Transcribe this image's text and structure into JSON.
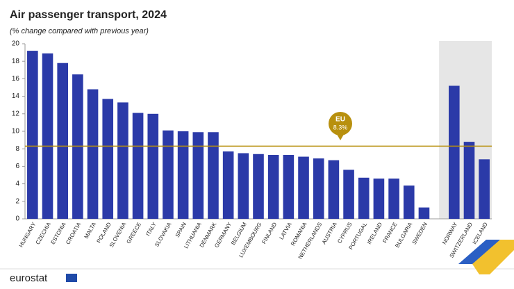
{
  "chart_data": {
    "type": "bar",
    "title": "Air passenger transport, 2024",
    "subtitle": "(% change compared with previous year)",
    "categories": [
      "HUNGARY",
      "CZECHIA",
      "ESTONIA",
      "CROATIA",
      "MALTA",
      "POLAND",
      "SLOVENIA",
      "GREECE",
      "ITALY",
      "SLOVAKIA",
      "SPAIN",
      "LITHUANIA",
      "DENMARK",
      "GERMANY",
      "BELGIUM",
      "LUXEMBOURG",
      "FINLAND",
      "LATVIA",
      "ROMANIA",
      "NETHERLANDS",
      "AUSTRIA",
      "CYPRUS",
      "PORTUGAL",
      "IRELAND",
      "FRANCE",
      "BULGARIA",
      "SWEDEN",
      null,
      "NORWAY",
      "SWITZERLAND",
      "ICELAND"
    ],
    "values": [
      19.2,
      18.9,
      17.8,
      16.5,
      14.8,
      13.7,
      13.3,
      12.1,
      12.0,
      10.1,
      10.0,
      9.9,
      9.9,
      7.7,
      7.5,
      7.4,
      7.3,
      7.3,
      7.1,
      6.9,
      6.7,
      5.6,
      4.7,
      4.6,
      4.6,
      3.8,
      1.3,
      null,
      15.2,
      8.8,
      6.8
    ],
    "color": "#2b3aa8",
    "ylim": [
      0,
      20
    ],
    "yticks": [
      0,
      2,
      4,
      6,
      8,
      10,
      12,
      14,
      16,
      18,
      20
    ],
    "grid": false,
    "reference_line": {
      "label": "EU",
      "value": 8.3,
      "value_label": "8.3%",
      "color": "#b8900e"
    }
  },
  "footer": {
    "logo": "eurostat"
  }
}
